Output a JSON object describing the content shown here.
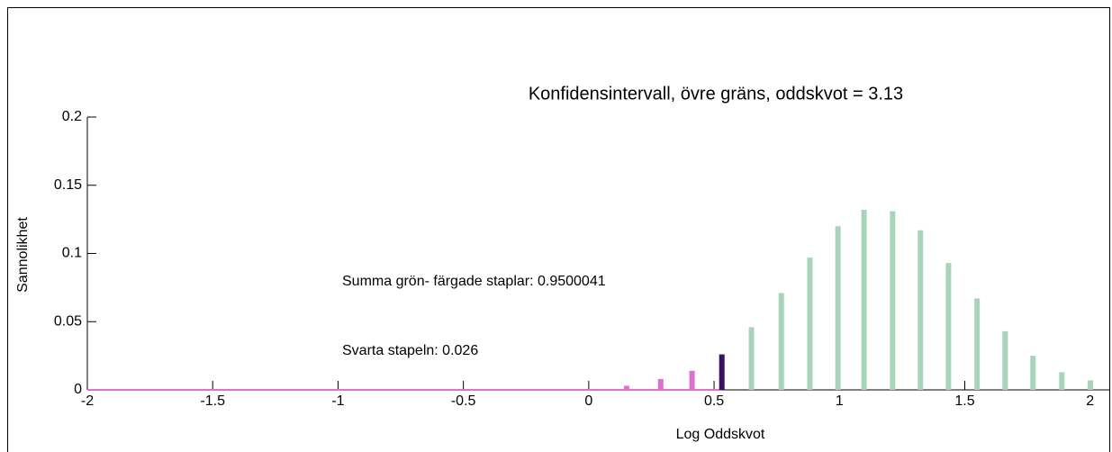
{
  "chart_data": {
    "type": "bar",
    "title": "Konfidensintervall, övre gräns, oddskvot = 3.13",
    "xlabel": "Log Oddskvot",
    "ylabel": "Sannolikhet",
    "annotations": [
      "Summa grön- färgade staplar: 0.9500041",
      "Svarta stapeln: 0.026"
    ],
    "xlim": [
      -2,
      2.08
    ],
    "ylim": [
      0,
      0.2
    ],
    "xticks": [
      -2,
      -1.5,
      -1,
      -0.5,
      0,
      0.5,
      1,
      1.5,
      2
    ],
    "yticks": [
      0,
      0.05,
      0.1,
      0.15,
      0.2
    ],
    "series": [
      {
        "type": "line",
        "color": "#e070d0",
        "x": [
          -2,
          0.53
        ],
        "values": [
          0,
          0
        ]
      },
      {
        "color": "#e070d0",
        "x": [
          0.151,
          0.287,
          0.412
        ],
        "values": [
          0.003,
          0.008,
          0.014
        ]
      },
      {
        "color": "#3a1060",
        "x": [
          0.531
        ],
        "values": [
          0.026
        ]
      },
      {
        "color": "#a8d5ba",
        "x": [
          0.649,
          0.768,
          0.882,
          0.994,
          1.098,
          1.212,
          1.323,
          1.435,
          1.549,
          1.661,
          1.772,
          1.887,
          2.001
        ],
        "values": [
          0.046,
          0.071,
          0.097,
          0.12,
          0.132,
          0.131,
          0.117,
          0.093,
          0.067,
          0.043,
          0.025,
          0.013,
          0.007
        ]
      }
    ]
  }
}
